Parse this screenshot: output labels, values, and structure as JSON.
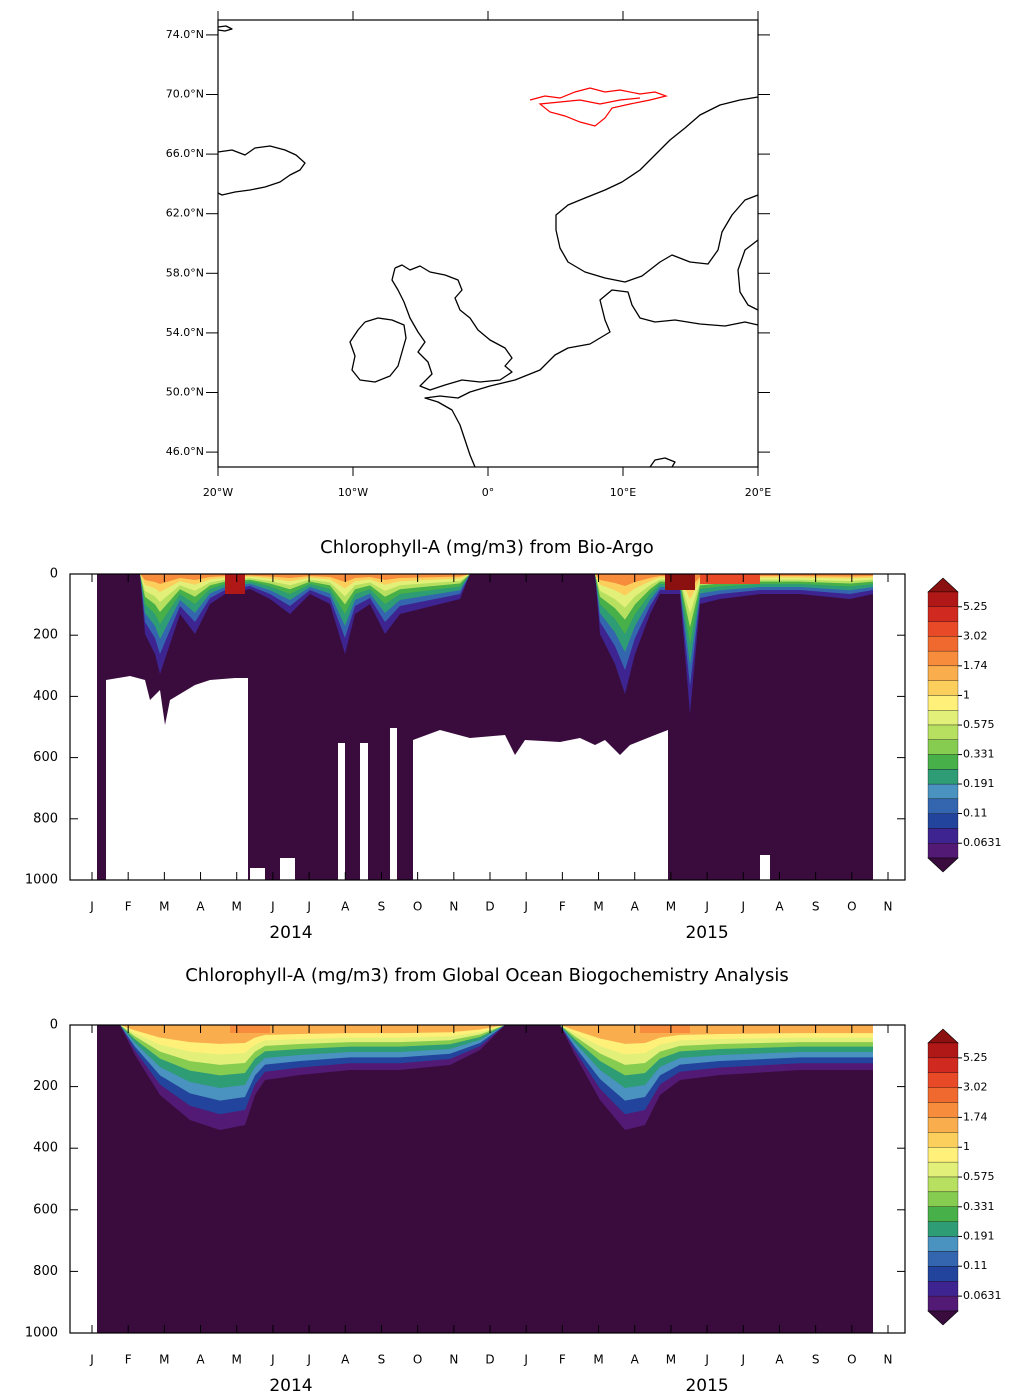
{
  "chart_data": [
    {
      "type": "map",
      "xlim": [
        -20,
        20
      ],
      "ylim": [
        45,
        75
      ],
      "xticks": [
        {
          "value": -20,
          "label": "20°W"
        },
        {
          "value": -10,
          "label": "10°W"
        },
        {
          "value": 0,
          "label": "0°"
        },
        {
          "value": 10,
          "label": "10°E"
        },
        {
          "value": 20,
          "label": "20°E"
        }
      ],
      "yticks": [
        {
          "value": 46,
          "label": "46.0°N"
        },
        {
          "value": 50,
          "label": "50.0°N"
        },
        {
          "value": 54,
          "label": "54.0°N"
        },
        {
          "value": 58,
          "label": "58.0°N"
        },
        {
          "value": 62,
          "label": "62.0°N"
        },
        {
          "value": 66,
          "label": "66.0°N"
        },
        {
          "value": 70,
          "label": "70.0°N"
        },
        {
          "value": 74,
          "label": "74.0°N"
        }
      ],
      "track_color": "#ff0000"
    },
    {
      "type": "contour",
      "title": "Chlorophyll-A (mg/m3) from Bio-Argo",
      "categories": [
        "J",
        "F",
        "M",
        "A",
        "M",
        "J",
        "J",
        "A",
        "S",
        "O",
        "N",
        "D",
        "J",
        "F",
        "M",
        "A",
        "M",
        "J",
        "J",
        "A",
        "S",
        "O",
        "N"
      ],
      "years": [
        "2014",
        "2015"
      ],
      "ylim": [
        1000,
        0
      ],
      "yticks": [
        0,
        200,
        400,
        600,
        800,
        1000
      ],
      "colorbar": {
        "log": true,
        "ticks": [
          5.25,
          3.02,
          1.74,
          1,
          0.575,
          0.331,
          0.191,
          0.11,
          0.0631
        ],
        "colors": [
          "#8b1010",
          "#b01818",
          "#d02a20",
          "#e84a28",
          "#f06a30",
          "#f68c3c",
          "#f9ad4c",
          "#fcce5c",
          "#fff07a",
          "#e2f07a",
          "#b8e060",
          "#86cc50",
          "#48b048",
          "#2e9c74",
          "#4a92c0",
          "#3466b0",
          "#22449c",
          "#3e2490",
          "#521a74",
          "#3a0c3e"
        ]
      }
    },
    {
      "type": "contour",
      "title": "Chlorophyll-A (mg/m3) from Global Ocean Biogochemistry Analysis",
      "categories": [
        "J",
        "F",
        "M",
        "A",
        "M",
        "J",
        "J",
        "A",
        "S",
        "O",
        "N",
        "D",
        "J",
        "F",
        "M",
        "A",
        "M",
        "J",
        "J",
        "A",
        "S",
        "O",
        "N"
      ],
      "years": [
        "2014",
        "2015"
      ],
      "ylim": [
        1000,
        0
      ],
      "yticks": [
        0,
        200,
        400,
        600,
        800,
        1000
      ],
      "colorbar": {
        "log": true,
        "ticks": [
          5.25,
          3.02,
          1.74,
          1,
          0.575,
          0.331,
          0.191,
          0.11,
          0.0631
        ],
        "colors": [
          "#8b1010",
          "#b01818",
          "#d02a20",
          "#e84a28",
          "#f06a30",
          "#f68c3c",
          "#f9ad4c",
          "#fcce5c",
          "#fff07a",
          "#e2f07a",
          "#b8e060",
          "#86cc50",
          "#48b048",
          "#2e9c74",
          "#4a92c0",
          "#3466b0",
          "#22449c",
          "#3e2490",
          "#521a74",
          "#3a0c3e"
        ]
      }
    }
  ]
}
